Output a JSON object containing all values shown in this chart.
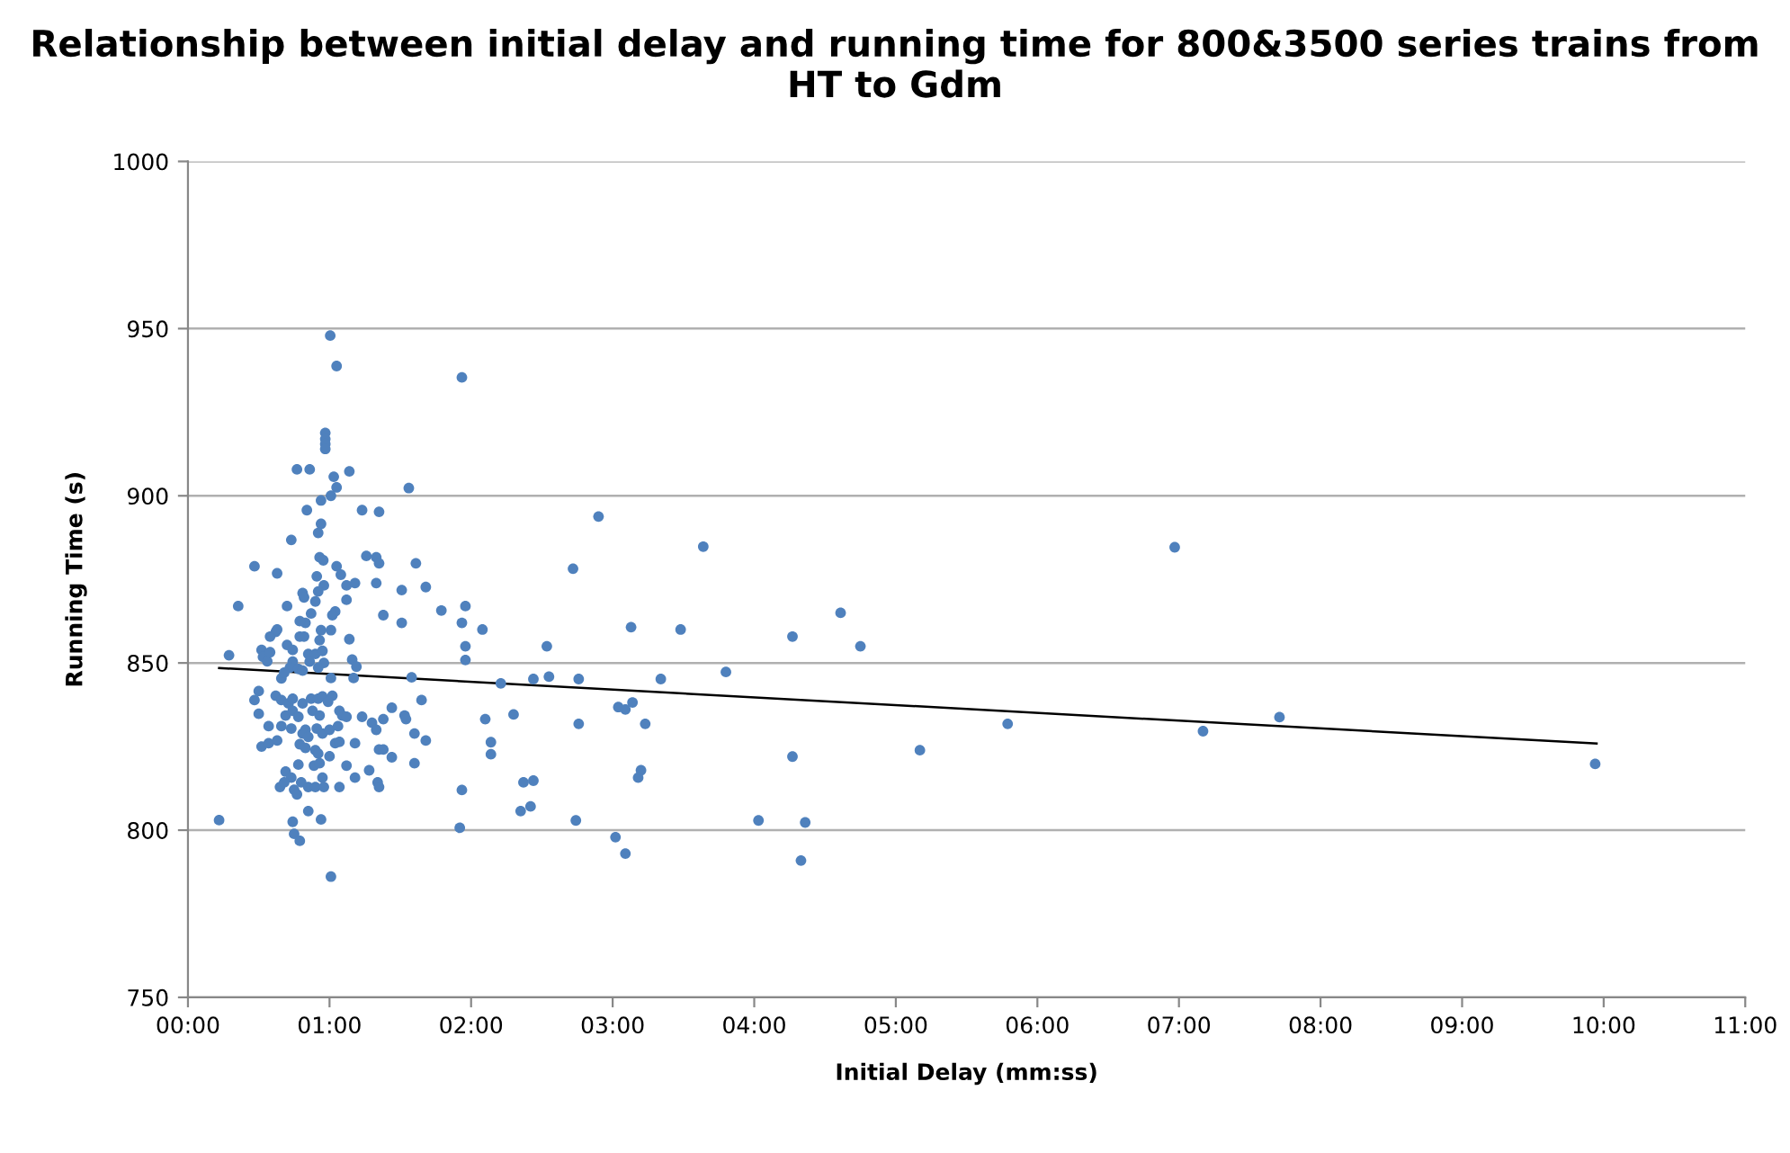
{
  "chart_data": {
    "type": "scatter",
    "title": "Relationship between initial delay and running time for 800&3500 series trains from HT to Gdm",
    "xlabel": "Initial Delay (mm:ss)",
    "ylabel": "Running Time (s)",
    "xlim": [
      0,
      11
    ],
    "xticks": [
      {
        "value": 0,
        "label": "00:00"
      },
      {
        "value": 1,
        "label": "01:00"
      },
      {
        "value": 2,
        "label": "02:00"
      },
      {
        "value": 3,
        "label": "03:00"
      },
      {
        "value": 4,
        "label": "04:00"
      },
      {
        "value": 5,
        "label": "05:00"
      },
      {
        "value": 6,
        "label": "06:00"
      },
      {
        "value": 7,
        "label": "07:00"
      },
      {
        "value": 8,
        "label": "08:00"
      },
      {
        "value": 9,
        "label": "09:00"
      },
      {
        "value": 10,
        "label": "10:00"
      },
      {
        "value": 11,
        "label": "11:00"
      }
    ],
    "ylim": [
      750,
      1000
    ],
    "yticks": [
      750,
      800,
      850,
      900,
      950,
      1000
    ],
    "grid": "y",
    "legend": false,
    "series": [
      {
        "color": "#4f81bd",
        "marker": "circle",
        "x": [
          1.005,
          1.05,
          0.97,
          0.97,
          0.97,
          0.97,
          0.77,
          0.86,
          1.14,
          1.03,
          1.05,
          1.01,
          0.94,
          1.56,
          0.84,
          1.23,
          1.35,
          0.94,
          0.92,
          0.73,
          0.47,
          0.63,
          0.93,
          0.956,
          1.05,
          1.08,
          1.26,
          1.33,
          1.35,
          1.61,
          0.91,
          0.96,
          0.92,
          0.81,
          0.82,
          1.12,
          1.18,
          1.33,
          1.68,
          1.51,
          0.9,
          0.87,
          0.83,
          0.79,
          1.04,
          1.02,
          1.12,
          0.355,
          0.7,
          0.94,
          1.01,
          0.79,
          0.82,
          1.38,
          1.51,
          1.79,
          0.62,
          0.58,
          0.63,
          1.14,
          0.93,
          0.29,
          0.52,
          0.53,
          0.56,
          0.58,
          0.7,
          0.74,
          0.74,
          0.72,
          0.66,
          0.68,
          0.78,
          0.81,
          0.85,
          0.9,
          0.95,
          0.96,
          0.86,
          0.92,
          1.01,
          1.16,
          1.19,
          1.17,
          1.58,
          0.5,
          0.47,
          0.5,
          0.62,
          0.66,
          0.71,
          0.74,
          0.81,
          0.87,
          0.92,
          0.95,
          1.02,
          0.99,
          0.69,
          0.74,
          0.78,
          0.88,
          0.93,
          1.07,
          1.09,
          1.12,
          0.57,
          0.66,
          0.73,
          0.83,
          0.81,
          0.85,
          0.91,
          0.95,
          1.0,
          1.06,
          1.23,
          1.3,
          1.33,
          1.38,
          1.44,
          1.53,
          1.54,
          1.65,
          1.6,
          1.68,
          0.52,
          0.57,
          0.63,
          0.79,
          0.83,
          0.9,
          0.92,
          1.0,
          1.04,
          1.07,
          1.18,
          1.35,
          1.38,
          1.44,
          1.6,
          0.78,
          0.89,
          0.93,
          1.12,
          1.18,
          1.28,
          1.34,
          1.35,
          0.69,
          0.73,
          0.65,
          0.68,
          0.75,
          0.8,
          0.85,
          0.9,
          0.95,
          0.96,
          1.07,
          0.77,
          0.85,
          0.94,
          0.22,
          0.74,
          0.75,
          0.79,
          1.01,
          1.935,
          2.9,
          3.64,
          2.72,
          1.96,
          1.935,
          2.08,
          1.96,
          1.96,
          2.535,
          3.13,
          3.48,
          4.27,
          4.61,
          4.75,
          3.8,
          2.21,
          2.44,
          2.55,
          2.76,
          3.34,
          2.1,
          2.3,
          2.76,
          3.04,
          3.09,
          3.14,
          3.23,
          2.14,
          2.14,
          4.27,
          5.17,
          2.37,
          2.44,
          3.2,
          3.18,
          1.935,
          2.35,
          2.42,
          1.92,
          2.74,
          4.03,
          4.36,
          3.02,
          3.09,
          4.33,
          6.97,
          5.79,
          7.17,
          7.71,
          9.94
        ],
        "values": [
          947.9,
          938.8,
          918.8,
          917,
          915.5,
          914,
          907.9,
          907.9,
          907.3,
          905.7,
          902.5,
          900,
          898.6,
          902.3,
          895.7,
          895.7,
          895.2,
          891.6,
          888.9,
          886.8,
          878.9,
          876.8,
          881.6,
          880.7,
          878.9,
          876.4,
          882,
          881.6,
          879.8,
          879.8,
          875.9,
          873.2,
          871.4,
          870.9,
          869.6,
          873.2,
          873.9,
          873.9,
          872.7,
          871.8,
          868.4,
          864.8,
          862,
          862.5,
          865.4,
          864.3,
          868.9,
          867,
          867,
          859.8,
          859.8,
          857.9,
          857.9,
          864.3,
          862,
          865.7,
          859.3,
          857.9,
          860,
          857.1,
          856.8,
          852.3,
          853.9,
          851.8,
          850.5,
          853.2,
          855.4,
          853.9,
          850.4,
          848.6,
          845.4,
          847.1,
          848.2,
          847.7,
          852.7,
          852.7,
          853.6,
          850,
          850.4,
          848.6,
          845.5,
          851,
          848.9,
          845.5,
          845.7,
          841.6,
          838.9,
          834.8,
          840.2,
          838.9,
          837.9,
          839.3,
          837.9,
          839.3,
          839.3,
          840,
          840.2,
          838.4,
          834.3,
          835.7,
          833.9,
          835.7,
          834.3,
          835.7,
          834.3,
          833.9,
          831.1,
          831.1,
          830.4,
          830,
          828.9,
          827.9,
          830.4,
          828.9,
          830,
          831.1,
          833.9,
          832.1,
          830,
          833.2,
          836.6,
          834.3,
          833.2,
          838.9,
          828.9,
          826.8,
          825,
          826,
          826.8,
          825.7,
          824.6,
          823.9,
          822.9,
          822.1,
          826,
          826.4,
          826,
          824.1,
          824.1,
          821.8,
          820,
          819.6,
          819.3,
          820,
          819.3,
          815.7,
          817.9,
          814.3,
          812.9,
          817.5,
          815.7,
          812.9,
          814.3,
          812.1,
          814.3,
          812.9,
          812.9,
          815.7,
          812.9,
          812.9,
          810.7,
          805.7,
          803.2,
          803,
          802.5,
          798.9,
          796.8,
          786.1,
          935.4,
          893.8,
          884.8,
          878.2,
          867,
          862,
          860,
          855,
          850.9,
          855,
          860.7,
          860,
          857.9,
          865,
          855,
          847.3,
          843.9,
          845.2,
          845.9,
          845.2,
          845.2,
          833.2,
          834.6,
          831.8,
          836.8,
          836.1,
          838.2,
          831.8,
          826.3,
          822.7,
          822,
          823.9,
          814.3,
          814.8,
          817.9,
          815.7,
          812,
          805.7,
          807.1,
          800.7,
          802.9,
          802.9,
          802.3,
          797.9,
          793,
          790.9,
          884.6,
          831.8,
          829.6,
          833.8,
          819.8
        ]
      },
      {
        "type": "line",
        "color": "#000000",
        "marker": "none",
        "x": [
          0.22,
          9.95
        ],
        "values": [
          848.5,
          825.9
        ]
      }
    ]
  }
}
